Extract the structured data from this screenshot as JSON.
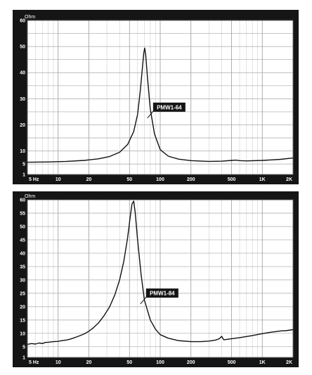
{
  "chart_data": [
    {
      "type": "line",
      "unit_label": "Ohm",
      "xscale": "log",
      "xlim": [
        5,
        2000
      ],
      "ylim": [
        1,
        60
      ],
      "x_tick_labels": [
        {
          "x": 5,
          "label": "5 Hz"
        },
        {
          "x": 10,
          "label": "10"
        },
        {
          "x": 20,
          "label": "20"
        },
        {
          "x": 50,
          "label": "50"
        },
        {
          "x": 100,
          "label": "100"
        },
        {
          "x": 200,
          "label": "200"
        },
        {
          "x": 500,
          "label": "500"
        },
        {
          "x": 1000,
          "label": "1K"
        },
        {
          "x": 2000,
          "label": "2K"
        }
      ],
      "y_ticks": [
        1,
        5,
        10,
        15,
        20,
        25,
        30,
        35,
        40,
        45,
        50,
        55,
        60
      ],
      "y_labels": [
        1,
        5,
        10,
        20,
        30,
        40,
        50,
        60
      ],
      "annotation": {
        "text": "PMW1-64",
        "x": 75,
        "y": 22.6
      },
      "series": [
        {
          "x": [
            5,
            8,
            12,
            18,
            25,
            32,
            40,
            48,
            55,
            60,
            64,
            67,
            69,
            70.5,
            72,
            75,
            80,
            88,
            100,
            120,
            150,
            200,
            300,
            400,
            500,
            550,
            600,
            700,
            1000,
            1500,
            2000
          ],
          "y": [
            5.7,
            5.8,
            6.0,
            6.4,
            7.0,
            7.9,
            9.5,
            12.5,
            17.5,
            24.0,
            33.5,
            42.0,
            47.5,
            49.4,
            47.0,
            38.0,
            26.0,
            16.5,
            10.5,
            8.0,
            6.9,
            6.3,
            6.0,
            6.1,
            6.4,
            6.5,
            6.3,
            6.2,
            6.4,
            6.8,
            7.3
          ]
        }
      ]
    },
    {
      "type": "line",
      "unit_label": "Ohm",
      "xscale": "log",
      "xlim": [
        5,
        2000
      ],
      "ylim": [
        1,
        60
      ],
      "x_tick_labels": [
        {
          "x": 5,
          "label": "5 Hz"
        },
        {
          "x": 10,
          "label": "10"
        },
        {
          "x": 20,
          "label": "20"
        },
        {
          "x": 50,
          "label": "50"
        },
        {
          "x": 100,
          "label": "100"
        },
        {
          "x": 200,
          "label": "200"
        },
        {
          "x": 500,
          "label": "500"
        },
        {
          "x": 1000,
          "label": "1K"
        },
        {
          "x": 2000,
          "label": "2K"
        }
      ],
      "y_ticks": [
        1,
        5,
        10,
        15,
        20,
        25,
        30,
        35,
        40,
        45,
        50,
        55,
        60
      ],
      "y_labels": [
        1,
        5,
        10,
        15,
        20,
        25,
        30,
        35,
        40,
        45,
        50,
        55,
        60
      ],
      "annotation": {
        "text": "PMW1-84",
        "x": 64,
        "y": 21.0
      },
      "series": [
        {
          "x": [
            5,
            5.5,
            6,
            6.5,
            7,
            7.5,
            8,
            9,
            10,
            11,
            12,
            13,
            14,
            15,
            16,
            18,
            20,
            22,
            25,
            28,
            32,
            36,
            40,
            44,
            48,
            51,
            53,
            55,
            57,
            60,
            65,
            70,
            80,
            90,
            100,
            120,
            150,
            200,
            250,
            300,
            350,
            380,
            400,
            410,
            420,
            440,
            500,
            600,
            800,
            1000,
            1200,
            1500,
            1700,
            2000
          ],
          "y": [
            5.9,
            6.2,
            6.0,
            6.4,
            6.2,
            6.6,
            6.7,
            6.9,
            7.0,
            7.3,
            7.5,
            7.8,
            8.2,
            8.6,
            9.0,
            9.8,
            10.8,
            12.0,
            14.0,
            16.5,
            20.0,
            24.5,
            30.0,
            37.0,
            46.0,
            54.0,
            58.5,
            59.5,
            55.0,
            45.0,
            32.0,
            22.5,
            15.0,
            11.5,
            9.5,
            8.2,
            7.3,
            6.9,
            6.9,
            7.1,
            7.5,
            8.0,
            8.9,
            8.2,
            7.6,
            7.7,
            8.0,
            8.4,
            9.2,
            9.9,
            10.4,
            10.9,
            11.0,
            11.4
          ]
        }
      ]
    }
  ]
}
